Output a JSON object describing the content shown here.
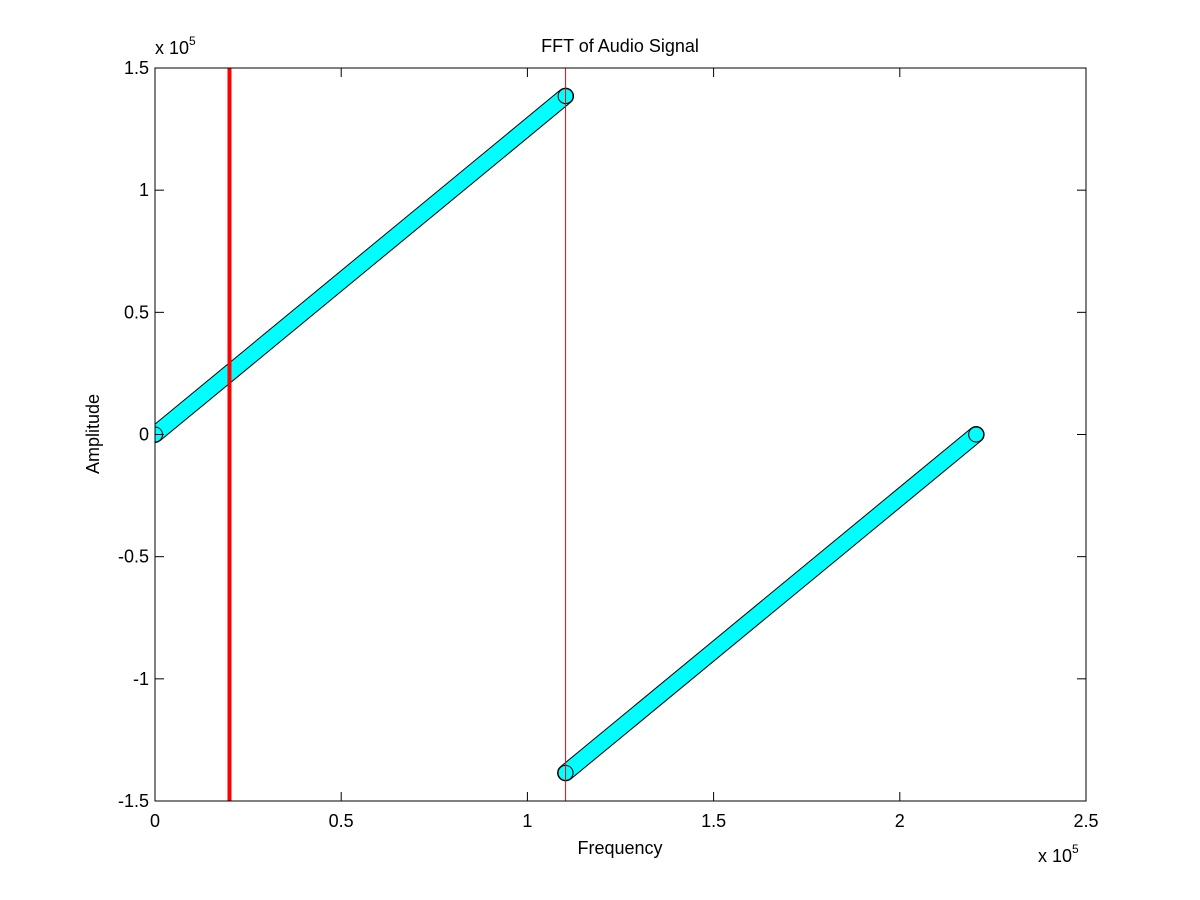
{
  "chart_data": {
    "type": "scatter",
    "title": "FFT of Audio Signal",
    "xlabel": "Frequency",
    "ylabel": "Amplitude",
    "xlim": [
      0,
      250000
    ],
    "ylim": [
      -150000,
      150000
    ],
    "x_exponent": {
      "base": "x 10",
      "power": "5"
    },
    "y_exponent": {
      "base": "x 10",
      "power": "5"
    },
    "xticks": [
      0,
      50000,
      100000,
      150000,
      200000,
      250000
    ],
    "xtick_labels": [
      "0",
      "0.5",
      "1",
      "1.5",
      "2",
      "2.5"
    ],
    "yticks": [
      -150000,
      -100000,
      -50000,
      0,
      50000,
      100000,
      150000
    ],
    "ytick_labels": [
      "-1.5",
      "-1",
      "-0.5",
      "0",
      "0.5",
      "1",
      "1.5"
    ],
    "grid": false,
    "series": [
      {
        "marker": "circle",
        "marker_fill": "#00ffff",
        "marker_edge": "#000000",
        "segments": [
          {
            "x": [
              0,
              110250
            ],
            "y": [
              0,
              138500
            ]
          },
          {
            "x": [
              110250,
              220500
            ],
            "y": [
              -138500,
              0
            ]
          }
        ]
      }
    ],
    "vlines": [
      {
        "x": 20000,
        "color": "#ff0000",
        "width": "thick"
      },
      {
        "x": 110250,
        "color": "#ff0000",
        "width": "thin"
      }
    ]
  }
}
